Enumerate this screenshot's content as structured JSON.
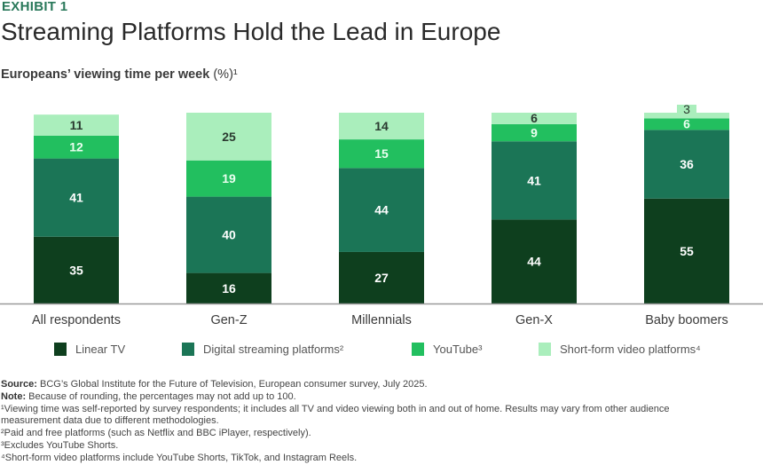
{
  "header": {
    "exhibit": "EXHIBIT 1",
    "title": "Streaming Platforms Hold the Lead in Europe",
    "subtitle": "Europeans’ viewing time per week",
    "subtitle_unit": "(%)¹"
  },
  "chart_data": {
    "type": "bar",
    "stacked": true,
    "title": "Europeans’ viewing time per week (%)¹",
    "xlabel": "",
    "ylabel": "",
    "ylim": [
      0,
      100
    ],
    "grid": false,
    "legend_position": "bottom",
    "categories": [
      "All respondents",
      "Gen-Z",
      "Millennials",
      "Gen-X",
      "Baby boomers"
    ],
    "series": [
      {
        "name": "Linear TV",
        "color": "#0e3f1e",
        "label_color": "#ffffff",
        "values": [
          35,
          16,
          27,
          44,
          55
        ]
      },
      {
        "name": "Digital streaming platforms²",
        "color": "#1b7556",
        "label_color": "#ffffff",
        "values": [
          41,
          40,
          44,
          41,
          36
        ]
      },
      {
        "name": "YouTube³",
        "color": "#22bf5f",
        "label_color": "#eafff0",
        "values": [
          12,
          19,
          15,
          9,
          6
        ]
      },
      {
        "name": "Short-form video platforms⁴",
        "color": "#aaeebc",
        "label_color": "#2b3a30",
        "values": [
          11,
          25,
          14,
          6,
          3
        ]
      }
    ]
  },
  "footnotes": {
    "source_label": "Source:",
    "source_text": " BCG’s Global Institute for the Future of Television, European consumer survey, July 2025.",
    "note_label": "Note:",
    "note_text": " Because of rounding, the percentages may not add up to 100.",
    "fn1_line1": "¹Viewing time was self-reported by survey respondents; it includes all TV and video viewing both in and out of home. Results may vary from other audience",
    "fn1_line2": "measurement data due to different methodologies.",
    "fn2": "²Paid and free platforms (such as Netflix and BBC iPlayer, respectively).",
    "fn3": "³Excludes YouTube Shorts.",
    "fn4": "⁴Short-form video platforms include YouTube Shorts, TikTok, and Instagram Reels."
  }
}
